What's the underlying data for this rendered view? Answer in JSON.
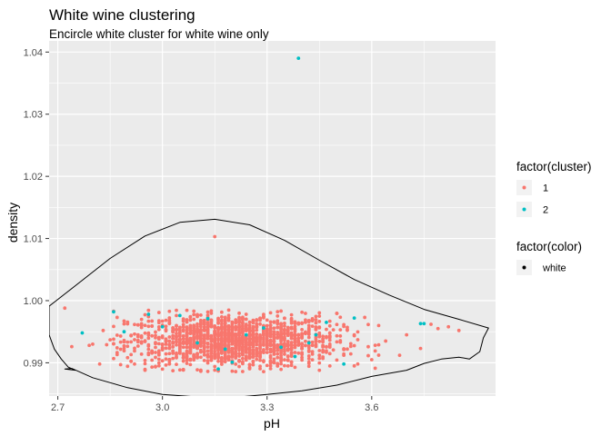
{
  "chart_data": {
    "type": "scatter",
    "title": "White wine clustering",
    "subtitle": "Encircle white cluster for white wine only",
    "xlabel": "pH",
    "ylabel": "density",
    "xlim": [
      2.675,
      3.955
    ],
    "ylim": [
      0.98465,
      1.0418
    ],
    "x_ticks": [
      2.7,
      3.0,
      3.3,
      3.6
    ],
    "x_tick_labels": [
      "2.7",
      "3.0",
      "3.3",
      "3.6"
    ],
    "y_ticks": [
      0.99,
      1.0,
      1.01,
      1.02,
      1.03,
      1.04
    ],
    "y_tick_labels": [
      "0.99",
      "1.00",
      "1.01",
      "1.02",
      "1.03",
      "1.04"
    ],
    "grid": true,
    "legend_placement": "right",
    "panel_background": "#ebebeb",
    "colors": {
      "cluster_1": "#f8766d",
      "cluster_2": "#00bfc4",
      "color_white": "#000000"
    },
    "legends": [
      {
        "title": "factor(cluster)",
        "entries": [
          {
            "label": "1",
            "color": "#f8766d"
          },
          {
            "label": "2",
            "color": "#00bfc4"
          }
        ]
      },
      {
        "title": "factor(color)",
        "entries": [
          {
            "label": "white",
            "color": "#000000"
          }
        ]
      }
    ],
    "series": [
      {
        "name": "1",
        "color": "#f8766d",
        "points": [
          [
            2.72,
            0.9988
          ],
          [
            2.74,
            0.9926
          ],
          [
            2.79,
            0.9928
          ],
          [
            2.8,
            0.993
          ],
          [
            2.82,
            0.9898
          ],
          [
            2.83,
            0.9952
          ],
          [
            2.84,
            0.9929
          ],
          [
            2.86,
            0.9983
          ],
          [
            2.87,
            0.9973
          ],
          [
            2.88,
            0.9943
          ],
          [
            3.15,
            1.0103
          ],
          [
            3.77,
            0.9962
          ],
          [
            3.79,
            0.9955
          ],
          [
            3.82,
            0.9958
          ],
          [
            3.85,
            0.9952
          ],
          [
            3.74,
            0.9923
          ],
          [
            3.7,
            0.9945
          ],
          [
            3.68,
            0.9912
          ],
          [
            3.64,
            0.9935
          ],
          [
            3.6,
            0.9905
          ],
          [
            3.62,
            0.996
          ],
          [
            3.58,
            0.9973
          ],
          [
            3.55,
            0.9895
          ],
          [
            2.92,
            0.9898
          ],
          [
            2.95,
            0.9888
          ]
        ]
      },
      {
        "name": "2",
        "color": "#00bfc4",
        "points": [
          [
            3.39,
            1.039
          ],
          [
            2.77,
            0.9948
          ],
          [
            2.86,
            0.9982
          ],
          [
            2.89,
            0.995
          ],
          [
            2.96,
            0.9978
          ],
          [
            3.05,
            0.9976
          ],
          [
            3.13,
            0.9971
          ],
          [
            3.18,
            0.9922
          ],
          [
            3.2,
            0.9901
          ],
          [
            3.24,
            0.9945
          ],
          [
            3.29,
            0.9956
          ],
          [
            3.34,
            0.9925
          ],
          [
            3.38,
            0.991
          ],
          [
            3.44,
            0.9945
          ],
          [
            3.47,
            0.9965
          ],
          [
            3.52,
            0.9898
          ],
          [
            3.55,
            0.9972
          ],
          [
            3.74,
            0.9963
          ],
          [
            3.75,
            0.9963
          ],
          [
            3.1,
            0.9932
          ],
          [
            3.0,
            0.9958
          ],
          [
            3.16,
            0.989
          ],
          [
            3.42,
            0.9932
          ]
        ]
      }
    ],
    "ellipse_outline": {
      "upper": [
        [
          2.675,
          0.9991
        ],
        [
          2.75,
          1.0024
        ],
        [
          2.85,
          1.0068
        ],
        [
          2.95,
          1.0104
        ],
        [
          3.05,
          1.0126
        ],
        [
          3.15,
          1.0131
        ],
        [
          3.25,
          1.0122
        ],
        [
          3.35,
          1.0097
        ],
        [
          3.45,
          1.0065
        ],
        [
          3.55,
          1.0034
        ],
        [
          3.65,
          1.0009
        ],
        [
          3.75,
          0.9986
        ],
        [
          3.85,
          0.997
        ],
        [
          3.935,
          0.9956
        ]
      ],
      "lower": [
        [
          3.935,
          0.9956
        ],
        [
          3.92,
          0.994
        ],
        [
          3.91,
          0.9918
        ],
        [
          3.88,
          0.9906
        ],
        [
          3.85,
          0.9909
        ],
        [
          3.8,
          0.9906
        ],
        [
          3.75,
          0.9899
        ],
        [
          3.7,
          0.9888
        ],
        [
          3.6,
          0.9878
        ],
        [
          3.5,
          0.9864
        ],
        [
          3.4,
          0.9855
        ],
        [
          3.3,
          0.9849
        ],
        [
          3.2,
          0.9844
        ],
        [
          3.1,
          0.9845
        ],
        [
          3.0,
          0.9849
        ],
        [
          2.9,
          0.986
        ],
        [
          2.8,
          0.9876
        ],
        [
          2.74,
          0.9891
        ],
        [
          2.72,
          0.989
        ],
        [
          2.75,
          0.9888
        ],
        [
          2.73,
          0.9893
        ],
        [
          2.71,
          0.9906
        ],
        [
          2.69,
          0.9922
        ],
        [
          2.675,
          0.9945
        ]
      ]
    },
    "dense_region": {
      "x_range": [
        2.85,
        3.62
      ],
      "y_range": [
        0.9885,
        0.9985
      ],
      "center": [
        3.2,
        0.9935
      ],
      "approximate_points": 1600
    }
  }
}
